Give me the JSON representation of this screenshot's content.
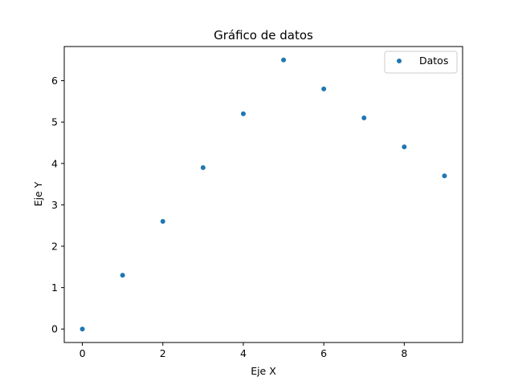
{
  "chart_data": {
    "type": "scatter",
    "title": "Gráfico de datos",
    "xlabel": "Eje X",
    "ylabel": "Eje Y",
    "xlim": [
      -0.45,
      9.45
    ],
    "ylim": [
      -0.325,
      6.825
    ],
    "xticks": [
      0,
      2,
      4,
      6,
      8
    ],
    "yticks": [
      0,
      1,
      2,
      3,
      4,
      5,
      6
    ],
    "grid": false,
    "legend_position": "top-right",
    "series": [
      {
        "name": "Datos",
        "color": "#1f77b4",
        "x": [
          0,
          1,
          2,
          3,
          4,
          5,
          6,
          7,
          8,
          9
        ],
        "y": [
          0.0,
          1.3,
          2.6,
          3.9,
          5.2,
          6.5,
          5.8,
          5.1,
          4.4,
          3.7
        ]
      }
    ]
  }
}
